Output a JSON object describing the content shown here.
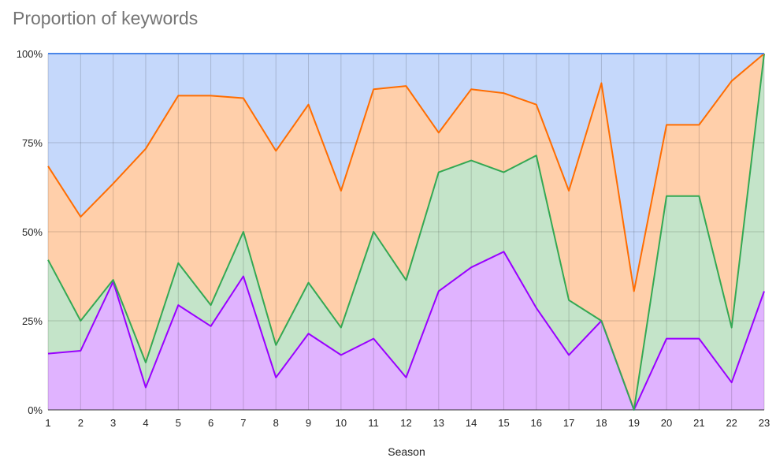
{
  "chart_data": {
    "type": "area",
    "stacked": "percent",
    "title": "Proportion of keywords",
    "xlabel": "Season",
    "ylabel": "",
    "categories": [
      "1",
      "2",
      "3",
      "4",
      "5",
      "6",
      "7",
      "8",
      "9",
      "10",
      "11",
      "12",
      "13",
      "14",
      "15",
      "16",
      "17",
      "18",
      "19",
      "20",
      "21",
      "22",
      "23"
    ],
    "y_ticks": [
      "0%",
      "25%",
      "50%",
      "75%",
      "100%"
    ],
    "ylim": [
      0,
      100
    ],
    "grid": true,
    "legend": "none",
    "boundaries": [
      {
        "color": "#9900ff",
        "values": [
          15.8,
          16.6,
          36.0,
          6.3,
          29.4,
          23.5,
          37.5,
          9.1,
          21.4,
          15.4,
          20.0,
          9.1,
          33.3,
          40.0,
          44.4,
          28.6,
          15.4,
          25.0,
          0.0,
          20.0,
          20.0,
          7.7,
          33.3
        ]
      },
      {
        "color": "#34a853",
        "values": [
          42.1,
          25.0,
          36.5,
          13.3,
          41.2,
          29.4,
          50.0,
          18.2,
          35.7,
          23.1,
          50.0,
          36.4,
          66.7,
          70.0,
          66.7,
          71.4,
          30.8,
          25.0,
          0.0,
          60.0,
          60.0,
          23.1,
          100.0
        ]
      },
      {
        "color": "#ff6d01",
        "values": [
          68.4,
          54.2,
          63.5,
          73.3,
          88.2,
          88.2,
          87.5,
          72.7,
          85.7,
          61.5,
          90.0,
          90.9,
          77.8,
          90.0,
          88.9,
          85.7,
          61.5,
          91.7,
          33.3,
          80.0,
          80.0,
          92.3,
          100.0
        ]
      },
      {
        "color": "#4a86e8",
        "values": [
          100,
          100,
          100,
          100,
          100,
          100,
          100,
          100,
          100,
          100,
          100,
          100,
          100,
          100,
          100,
          100,
          100,
          100,
          100,
          100,
          100,
          100,
          100
        ]
      }
    ],
    "fills": [
      "#e0b3ff",
      "#c4e4c9",
      "#ffcfaa",
      "#c5d8fb"
    ]
  }
}
